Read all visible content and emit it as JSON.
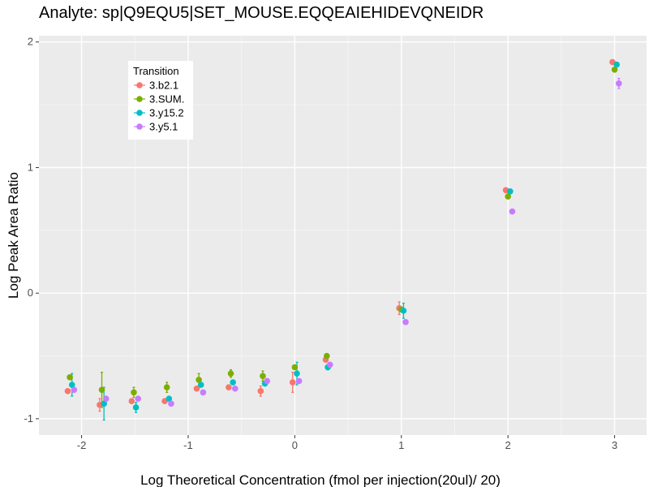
{
  "chart_data": {
    "type": "scatter",
    "title": "Analyte: sp|Q9EQU5|SET_MOUSE.EQQEAIEHIDEVQNEIDR",
    "xlabel": "Log Theoretical Concentration (fmol per injection(20ul)/ 20)",
    "ylabel": "Log Peak Area Ratio",
    "xlim": [
      -2.4,
      3.3
    ],
    "ylim": [
      -1.13,
      2.05
    ],
    "x_ticks": [
      -2,
      -1,
      0,
      1,
      2,
      3
    ],
    "x_tick_labels": [
      "-2",
      "-1",
      "0",
      "1",
      "2",
      "3"
    ],
    "y_ticks": [
      -1,
      0,
      1,
      2
    ],
    "y_tick_labels": [
      "-1",
      "0",
      "1",
      "2"
    ],
    "grid": true,
    "legend": {
      "title": "Transition",
      "position": "top-left"
    },
    "series": [
      {
        "name": "3.b2.1",
        "color": "#F8766D",
        "points": [
          {
            "x": -2.13,
            "y": -0.78
          },
          {
            "x": -1.83,
            "y": -0.89,
            "err": 0.05
          },
          {
            "x": -1.53,
            "y": -0.86
          },
          {
            "x": -1.22,
            "y": -0.86
          },
          {
            "x": -0.92,
            "y": -0.76
          },
          {
            "x": -0.62,
            "y": -0.75
          },
          {
            "x": -0.32,
            "y": -0.78,
            "err": 0.04
          },
          {
            "x": -0.02,
            "y": -0.71,
            "err": 0.08
          },
          {
            "x": 0.29,
            "y": -0.53
          },
          {
            "x": 0.98,
            "y": -0.12,
            "err": 0.05
          },
          {
            "x": 1.98,
            "y": 0.82
          },
          {
            "x": 2.98,
            "y": 1.84
          }
        ]
      },
      {
        "name": "3.SUM.",
        "color": "#7CAE00",
        "points": [
          {
            "x": -2.11,
            "y": -0.67
          },
          {
            "x": -1.81,
            "y": -0.77,
            "err": 0.14
          },
          {
            "x": -1.51,
            "y": -0.79,
            "err": 0.04
          },
          {
            "x": -1.2,
            "y": -0.75,
            "err": 0.04
          },
          {
            "x": -0.9,
            "y": -0.69,
            "err": 0.05
          },
          {
            "x": -0.6,
            "y": -0.64,
            "err": 0.03
          },
          {
            "x": -0.3,
            "y": -0.66,
            "err": 0.04
          },
          {
            "x": 0.0,
            "y": -0.59
          },
          {
            "x": 0.3,
            "y": -0.5
          },
          {
            "x": 1.0,
            "y": -0.13
          },
          {
            "x": 2.0,
            "y": 0.77
          },
          {
            "x": 3.0,
            "y": 1.78
          }
        ]
      },
      {
        "name": "3.y15.2",
        "color": "#00BFC4",
        "points": [
          {
            "x": -2.09,
            "y": -0.73,
            "err": 0.09
          },
          {
            "x": -1.79,
            "y": -0.88,
            "err": 0.13
          },
          {
            "x": -1.49,
            "y": -0.91,
            "err": 0.04
          },
          {
            "x": -1.18,
            "y": -0.84
          },
          {
            "x": -0.88,
            "y": -0.73
          },
          {
            "x": -0.58,
            "y": -0.71
          },
          {
            "x": -0.28,
            "y": -0.72
          },
          {
            "x": 0.02,
            "y": -0.64,
            "err": 0.09
          },
          {
            "x": 0.31,
            "y": -0.59,
            "err": 0.02
          },
          {
            "x": 1.02,
            "y": -0.14,
            "err": 0.06
          },
          {
            "x": 2.02,
            "y": 0.81
          },
          {
            "x": 3.02,
            "y": 1.82
          }
        ]
      },
      {
        "name": "3.y5.1",
        "color": "#C77CFF",
        "points": [
          {
            "x": -2.07,
            "y": -0.77
          },
          {
            "x": -1.77,
            "y": -0.84
          },
          {
            "x": -1.47,
            "y": -0.84
          },
          {
            "x": -1.16,
            "y": -0.88
          },
          {
            "x": -0.86,
            "y": -0.79
          },
          {
            "x": -0.56,
            "y": -0.76
          },
          {
            "x": -0.26,
            "y": -0.7
          },
          {
            "x": 0.04,
            "y": -0.7
          },
          {
            "x": 0.33,
            "y": -0.57
          },
          {
            "x": 1.04,
            "y": -0.23
          },
          {
            "x": 2.04,
            "y": 0.65
          },
          {
            "x": 3.04,
            "y": 1.67,
            "err": 0.04
          }
        ]
      }
    ]
  }
}
